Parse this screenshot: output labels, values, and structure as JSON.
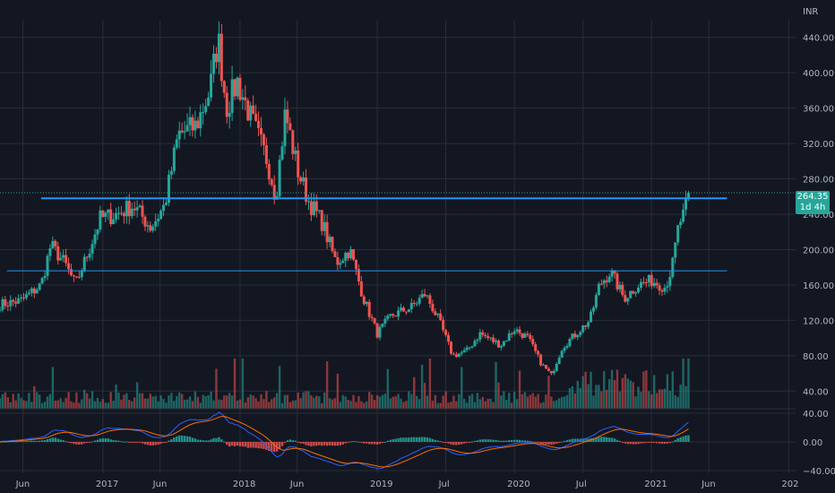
{
  "header": {
    "currency": "INR"
  },
  "last_price": {
    "label": "264.35",
    "countdown": "1d 4h"
  },
  "colors": {
    "up": "#26a69a",
    "down": "#ef5350",
    "macd": "#2962ff",
    "signal": "#ff6d00",
    "level": "#2196f3",
    "grid": "#2a2e39",
    "bg": "#131722"
  },
  "chart_data": [
    {
      "type": "candlestick",
      "title": "",
      "ylim": [
        20,
        460
      ],
      "y_ticks": [
        "40.00",
        "80.00",
        "120.00",
        "160.00",
        "200.00",
        "240.00",
        "280.00",
        "320.00",
        "360.00",
        "400.00",
        "440.00"
      ],
      "x_ticks": [
        {
          "label": "Jun",
          "t": 2016.417
        },
        {
          "label": "2017",
          "t": 2017.0
        },
        {
          "label": "Jun",
          "t": 2017.417
        },
        {
          "label": "2018",
          "t": 2018.0
        },
        {
          "label": "Jun",
          "t": 2018.417
        },
        {
          "label": "2019",
          "t": 2019.0
        },
        {
          "label": "Jul",
          "t": 2019.5
        },
        {
          "label": "2020",
          "t": 2020.0
        },
        {
          "label": "Jul",
          "t": 2020.5
        },
        {
          "label": "2021",
          "t": 2021.0
        },
        {
          "label": "Jun",
          "t": 2021.417
        },
        {
          "label": "202",
          "t": 2022.0
        }
      ],
      "xlim": [
        2016.25,
        2022.05
      ],
      "price_path_weekly_close_anchors": [
        {
          "t": 2016.25,
          "v": 138
        },
        {
          "t": 2016.4,
          "v": 142
        },
        {
          "t": 2016.55,
          "v": 160
        },
        {
          "t": 2016.62,
          "v": 205
        },
        {
          "t": 2016.72,
          "v": 185
        },
        {
          "t": 2016.8,
          "v": 160
        },
        {
          "t": 2016.9,
          "v": 200
        },
        {
          "t": 2016.98,
          "v": 235
        },
        {
          "t": 2017.1,
          "v": 240
        },
        {
          "t": 2017.22,
          "v": 250
        },
        {
          "t": 2017.35,
          "v": 225
        },
        {
          "t": 2017.45,
          "v": 250
        },
        {
          "t": 2017.55,
          "v": 330
        },
        {
          "t": 2017.68,
          "v": 340
        },
        {
          "t": 2017.78,
          "v": 380
        },
        {
          "t": 2017.84,
          "v": 440
        },
        {
          "t": 2017.9,
          "v": 360
        },
        {
          "t": 2017.98,
          "v": 390
        },
        {
          "t": 2018.1,
          "v": 340
        },
        {
          "t": 2018.2,
          "v": 300
        },
        {
          "t": 2018.26,
          "v": 260
        },
        {
          "t": 2018.33,
          "v": 355
        },
        {
          "t": 2018.42,
          "v": 290
        },
        {
          "t": 2018.5,
          "v": 255
        },
        {
          "t": 2018.6,
          "v": 230
        },
        {
          "t": 2018.7,
          "v": 185
        },
        {
          "t": 2018.8,
          "v": 200
        },
        {
          "t": 2018.9,
          "v": 145
        },
        {
          "t": 2019.0,
          "v": 105
        },
        {
          "t": 2019.1,
          "v": 125
        },
        {
          "t": 2019.25,
          "v": 135
        },
        {
          "t": 2019.35,
          "v": 150
        },
        {
          "t": 2019.45,
          "v": 120
        },
        {
          "t": 2019.55,
          "v": 80
        },
        {
          "t": 2019.65,
          "v": 85
        },
        {
          "t": 2019.75,
          "v": 105
        },
        {
          "t": 2019.9,
          "v": 92
        },
        {
          "t": 2020.0,
          "v": 110
        },
        {
          "t": 2020.1,
          "v": 100
        },
        {
          "t": 2020.2,
          "v": 70
        },
        {
          "t": 2020.27,
          "v": 58
        },
        {
          "t": 2020.35,
          "v": 90
        },
        {
          "t": 2020.45,
          "v": 105
        },
        {
          "t": 2020.55,
          "v": 120
        },
        {
          "t": 2020.62,
          "v": 160
        },
        {
          "t": 2020.7,
          "v": 175
        },
        {
          "t": 2020.8,
          "v": 145
        },
        {
          "t": 2020.9,
          "v": 160
        },
        {
          "t": 2021.0,
          "v": 165
        },
        {
          "t": 2021.1,
          "v": 158
        },
        {
          "t": 2021.15,
          "v": 180
        },
        {
          "t": 2021.2,
          "v": 230
        },
        {
          "t": 2021.24,
          "v": 240
        },
        {
          "t": 2021.27,
          "v": 264.35
        }
      ],
      "levels": [
        {
          "name": "resistance-upper",
          "value": 258,
          "t_start": 2016.55,
          "t_end": 2021.55,
          "width": 2
        },
        {
          "name": "support-lower",
          "value": 176,
          "t_start": 2016.3,
          "t_end": 2021.55,
          "width": 1
        }
      ],
      "volume_ylim": [
        0,
        230
      ]
    },
    {
      "type": "macd",
      "title": "",
      "ylim": [
        -40,
        40
      ],
      "y_ticks": [
        "40.00",
        "0.00",
        "−40.00"
      ]
    }
  ]
}
